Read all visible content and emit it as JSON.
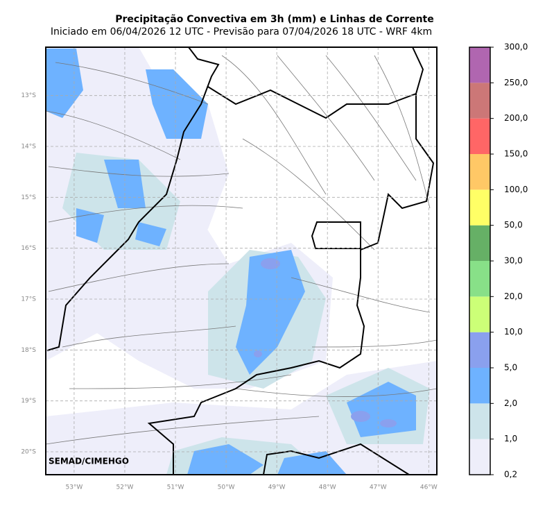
{
  "map": {
    "title": "Precipitação Convectiva em 3h (mm) e Linhas de Corrente",
    "subtitle": "Iniciado em 06/04/2026 12 UTC - Previsão para 07/04/2026 18 UTC - WRF 4km",
    "credit": "SEMAD/CIMEHGO",
    "xlim": [
      -53.56,
      -45.84
    ],
    "ylim": [
      -20.45,
      -12.05
    ],
    "lon_ticks": [
      {
        "value": -53,
        "label": "53°W"
      },
      {
        "value": -52,
        "label": "52°W"
      },
      {
        "value": -51,
        "label": "51°W"
      },
      {
        "value": -50,
        "label": "50°W"
      },
      {
        "value": -49,
        "label": "49°W"
      },
      {
        "value": -48,
        "label": "48°W"
      },
      {
        "value": -47,
        "label": "47°W"
      },
      {
        "value": -46,
        "label": "46°W"
      }
    ],
    "lat_ticks": [
      {
        "value": -13,
        "label": "13°S"
      },
      {
        "value": -14,
        "label": "14°S"
      },
      {
        "value": -15,
        "label": "15°S"
      },
      {
        "value": -16,
        "label": "16°S"
      },
      {
        "value": -17,
        "label": "17°S"
      },
      {
        "value": -18,
        "label": "18°S"
      },
      {
        "value": -19,
        "label": "19°S"
      },
      {
        "value": -20,
        "label": "20°S"
      }
    ],
    "grid": true,
    "colorbar": {
      "levels": [
        {
          "value": 0.2,
          "label": "0,2"
        },
        {
          "value": 1,
          "label": "1,0"
        },
        {
          "value": 2,
          "label": "2,0"
        },
        {
          "value": 5,
          "label": "5,0"
        },
        {
          "value": 10,
          "label": "10,0"
        },
        {
          "value": 20,
          "label": "20,0"
        },
        {
          "value": 30,
          "label": "30,0"
        },
        {
          "value": 50,
          "label": "50,0"
        },
        {
          "value": 100,
          "label": "100,0"
        },
        {
          "value": 150,
          "label": "150,0"
        },
        {
          "value": 200,
          "label": "200,0"
        },
        {
          "value": 250,
          "label": "250,0"
        },
        {
          "value": 300,
          "label": "300,0"
        }
      ],
      "colors": [
        "#eeeefa",
        "#cde4ea",
        "#6eb2ff",
        "#8aa0ee",
        "#ccff77",
        "#88e088",
        "#66b066",
        "#ffff66",
        "#ffc866",
        "#ff6666",
        "#cc7777",
        "#b066b0"
      ]
    }
  }
}
